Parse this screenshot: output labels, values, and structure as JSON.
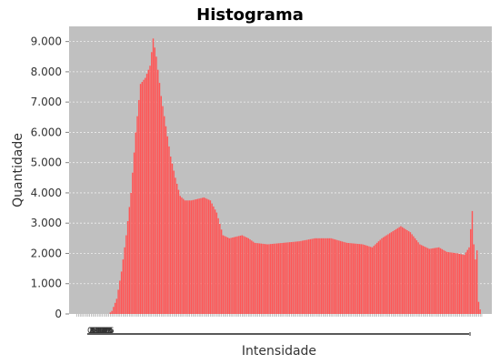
{
  "chart_data": {
    "type": "bar",
    "title": "Histograma",
    "xlabel": "Intensidade",
    "ylabel": "Quantidade",
    "xlim": [
      0,
      255
    ],
    "ylim": [
      0,
      9500
    ],
    "grid": true,
    "legend": "none",
    "y_ticks": [
      {
        "value": 0,
        "label": "0"
      },
      {
        "value": 1000,
        "label": "1.000"
      },
      {
        "value": 2000,
        "label": "2.000"
      },
      {
        "value": 3000,
        "label": "3.000"
      },
      {
        "value": 4000,
        "label": "4.000"
      },
      {
        "value": 5000,
        "label": "5.000"
      },
      {
        "value": 6000,
        "label": "6.000"
      },
      {
        "value": 7000,
        "label": "7.000"
      },
      {
        "value": 8000,
        "label": "8.000"
      },
      {
        "value": 9000,
        "label": "9.000"
      }
    ],
    "x_tick_labels": [
      "0",
      "1",
      "2",
      "3",
      "4",
      "5",
      "6",
      "7",
      "8",
      "9",
      "10",
      "11",
      "12",
      "13",
      "14",
      "15",
      "16",
      "17",
      "18",
      "19",
      "20",
      "21",
      "22",
      "23",
      "24",
      "25",
      "26"
    ],
    "profile": [
      [
        0,
        0
      ],
      [
        20,
        0
      ],
      [
        22,
        100
      ],
      [
        25,
        500
      ],
      [
        28,
        1400
      ],
      [
        31,
        2600
      ],
      [
        34,
        4000
      ],
      [
        37,
        6000
      ],
      [
        40,
        7600
      ],
      [
        43,
        7800
      ],
      [
        46,
        8200
      ],
      [
        48,
        9100
      ],
      [
        50,
        8500
      ],
      [
        53,
        7200
      ],
      [
        56,
        6200
      ],
      [
        59,
        5200
      ],
      [
        62,
        4500
      ],
      [
        65,
        3900
      ],
      [
        68,
        3750
      ],
      [
        72,
        3750
      ],
      [
        76,
        3800
      ],
      [
        80,
        3850
      ],
      [
        84,
        3750
      ],
      [
        88,
        3350
      ],
      [
        92,
        2600
      ],
      [
        96,
        2500
      ],
      [
        100,
        2550
      ],
      [
        104,
        2600
      ],
      [
        108,
        2500
      ],
      [
        112,
        2350
      ],
      [
        120,
        2300
      ],
      [
        130,
        2350
      ],
      [
        140,
        2400
      ],
      [
        150,
        2500
      ],
      [
        160,
        2500
      ],
      [
        170,
        2350
      ],
      [
        180,
        2300
      ],
      [
        186,
        2200
      ],
      [
        192,
        2500
      ],
      [
        198,
        2700
      ],
      [
        204,
        2900
      ],
      [
        210,
        2700
      ],
      [
        216,
        2300
      ],
      [
        222,
        2150
      ],
      [
        228,
        2200
      ],
      [
        233,
        2050
      ],
      [
        240,
        2000
      ],
      [
        244,
        1950
      ],
      [
        247,
        2200
      ],
      [
        249,
        3400
      ],
      [
        250,
        2300
      ],
      [
        251,
        1800
      ],
      [
        252,
        2100
      ],
      [
        253,
        400
      ],
      [
        254,
        150
      ],
      [
        255,
        0
      ]
    ],
    "colors": {
      "bar": "#ff5555",
      "plot_bg": "#c0c0c0",
      "grid": "#f0f0f0"
    }
  }
}
